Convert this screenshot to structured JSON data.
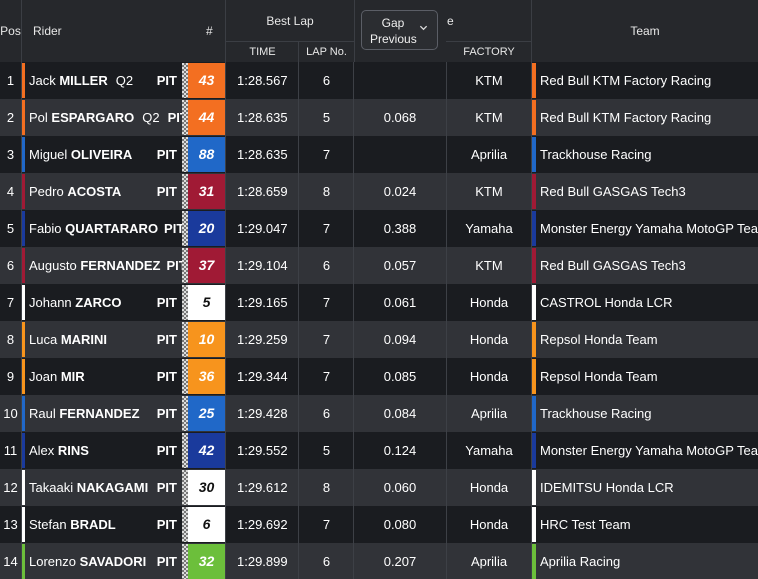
{
  "header": {
    "pos": "Pos",
    "rider": "Rider",
    "number": "#",
    "best_lap": "Best Lap",
    "time": "TIME",
    "lap_no": "LAP No.",
    "gap_button": {
      "line1": "Gap",
      "line2": "Previous"
    },
    "gap_suffix": "e",
    "factory": "FACTORY",
    "team": "Team"
  },
  "colors": {
    "KTM": "#f36f21",
    "Aprilia": "#2068c8",
    "GASGAS": "#a01a35",
    "Yamaha": "#1a3a9c",
    "Castrol": "#ffffff",
    "Repsol": "#f7941d",
    "Aprilia Racing": "#6cbf3b"
  },
  "rows": [
    {
      "pos": "1",
      "first": "Jack",
      "last": "MILLER",
      "q2": "Q2",
      "pit": "PIT",
      "num": "43",
      "num_bg": "#f36f21",
      "num_fg": "#ffffff",
      "stripe": "#f36f21",
      "time": "1:28.567",
      "lap": "6",
      "gap": "",
      "factory": "KTM",
      "team": "Red Bull KTM Factory Racing",
      "team_stripe": "#f36f21"
    },
    {
      "pos": "2",
      "first": "Pol",
      "last": "ESPARGARO",
      "q2": "Q2",
      "pit": "PIT",
      "num": "44",
      "num_bg": "#f36f21",
      "num_fg": "#ffffff",
      "stripe": "#f36f21",
      "time": "1:28.635",
      "lap": "5",
      "gap": "0.068",
      "factory": "KTM",
      "team": "Red Bull KTM Factory Racing",
      "team_stripe": "#f36f21"
    },
    {
      "pos": "3",
      "first": "Miguel",
      "last": "OLIVEIRA",
      "q2": "",
      "pit": "PIT",
      "num": "88",
      "num_bg": "#2068c8",
      "num_fg": "#ffffff",
      "stripe": "#2068c8",
      "time": "1:28.635",
      "lap": "7",
      "gap": "",
      "factory": "Aprilia",
      "team": "Trackhouse Racing",
      "team_stripe": "#2068c8"
    },
    {
      "pos": "4",
      "first": "Pedro",
      "last": "ACOSTA",
      "q2": "",
      "pit": "PIT",
      "num": "31",
      "num_bg": "#a01a35",
      "num_fg": "#ffffff",
      "stripe": "#a01a35",
      "time": "1:28.659",
      "lap": "8",
      "gap": "0.024",
      "factory": "KTM",
      "team": "Red Bull GASGAS Tech3",
      "team_stripe": "#a01a35"
    },
    {
      "pos": "5",
      "first": "Fabio",
      "last": "QUARTARARO",
      "q2": "",
      "pit": "PIT",
      "num": "20",
      "num_bg": "#1a3a9c",
      "num_fg": "#ffffff",
      "stripe": "#1a3a9c",
      "time": "1:29.047",
      "lap": "7",
      "gap": "0.388",
      "factory": "Yamaha",
      "team": "Monster Energy Yamaha MotoGP Team",
      "team_stripe": "#1a3a9c"
    },
    {
      "pos": "6",
      "first": "Augusto",
      "last": "FERNANDEZ",
      "q2": "",
      "pit": "PIT",
      "num": "37",
      "num_bg": "#a01a35",
      "num_fg": "#ffffff",
      "stripe": "#a01a35",
      "time": "1:29.104",
      "lap": "6",
      "gap": "0.057",
      "factory": "KTM",
      "team": "Red Bull GASGAS Tech3",
      "team_stripe": "#a01a35"
    },
    {
      "pos": "7",
      "first": "Johann",
      "last": "ZARCO",
      "q2": "",
      "pit": "PIT",
      "num": "5",
      "num_bg": "#ffffff",
      "num_fg": "#111111",
      "stripe": "#ffffff",
      "time": "1:29.165",
      "lap": "7",
      "gap": "0.061",
      "factory": "Honda",
      "team": "CASTROL Honda LCR",
      "team_stripe": "#ffffff"
    },
    {
      "pos": "8",
      "first": "Luca",
      "last": "MARINI",
      "q2": "",
      "pit": "PIT",
      "num": "10",
      "num_bg": "#f7941d",
      "num_fg": "#ffffff",
      "stripe": "#f7941d",
      "time": "1:29.259",
      "lap": "7",
      "gap": "0.094",
      "factory": "Honda",
      "team": "Repsol Honda Team",
      "team_stripe": "#f7941d"
    },
    {
      "pos": "9",
      "first": "Joan",
      "last": "MIR",
      "q2": "",
      "pit": "PIT",
      "num": "36",
      "num_bg": "#f7941d",
      "num_fg": "#ffffff",
      "stripe": "#f7941d",
      "time": "1:29.344",
      "lap": "7",
      "gap": "0.085",
      "factory": "Honda",
      "team": "Repsol Honda Team",
      "team_stripe": "#f7941d"
    },
    {
      "pos": "10",
      "first": "Raul",
      "last": "FERNANDEZ",
      "q2": "",
      "pit": "PIT",
      "num": "25",
      "num_bg": "#2068c8",
      "num_fg": "#ffffff",
      "stripe": "#2068c8",
      "time": "1:29.428",
      "lap": "6",
      "gap": "0.084",
      "factory": "Aprilia",
      "team": "Trackhouse Racing",
      "team_stripe": "#2068c8"
    },
    {
      "pos": "11",
      "first": "Alex",
      "last": "RINS",
      "q2": "",
      "pit": "PIT",
      "num": "42",
      "num_bg": "#1a3a9c",
      "num_fg": "#ffffff",
      "stripe": "#1a3a9c",
      "time": "1:29.552",
      "lap": "5",
      "gap": "0.124",
      "factory": "Yamaha",
      "team": "Monster Energy Yamaha MotoGP Team",
      "team_stripe": "#1a3a9c"
    },
    {
      "pos": "12",
      "first": "Takaaki",
      "last": "NAKAGAMI",
      "q2": "",
      "pit": "PIT",
      "num": "30",
      "num_bg": "#ffffff",
      "num_fg": "#111111",
      "stripe": "#ffffff",
      "time": "1:29.612",
      "lap": "8",
      "gap": "0.060",
      "factory": "Honda",
      "team": "IDEMITSU Honda LCR",
      "team_stripe": "#ffffff"
    },
    {
      "pos": "13",
      "first": "Stefan",
      "last": "BRADL",
      "q2": "",
      "pit": "PIT",
      "num": "6",
      "num_bg": "#ffffff",
      "num_fg": "#111111",
      "stripe": "#ffffff",
      "time": "1:29.692",
      "lap": "7",
      "gap": "0.080",
      "factory": "Honda",
      "team": "HRC Test Team",
      "team_stripe": "#ffffff"
    },
    {
      "pos": "14",
      "first": "Lorenzo",
      "last": "SAVADORI",
      "q2": "",
      "pit": "PIT",
      "num": "32",
      "num_bg": "#6cbf3b",
      "num_fg": "#ffffff",
      "stripe": "#6cbf3b",
      "time": "1:29.899",
      "lap": "6",
      "gap": "0.207",
      "factory": "Aprilia",
      "team": "Aprilia Racing",
      "team_stripe": "#6cbf3b"
    }
  ]
}
